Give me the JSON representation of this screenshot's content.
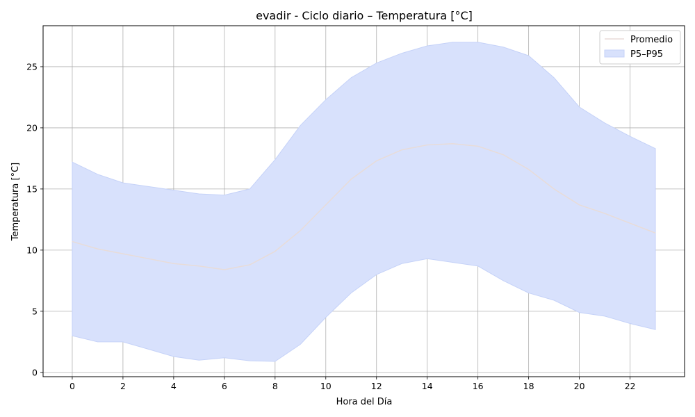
{
  "chart_data": {
    "type": "area",
    "title": "evadir - Ciclo diario – Temperatura [°C]",
    "xlabel": "Hora del Día",
    "ylabel": "Temperatura [°C]",
    "x": [
      0,
      1,
      2,
      3,
      4,
      5,
      6,
      7,
      8,
      9,
      10,
      11,
      12,
      13,
      14,
      15,
      16,
      17,
      18,
      19,
      20,
      21,
      22,
      23
    ],
    "xticks": [
      0,
      2,
      4,
      6,
      8,
      10,
      12,
      14,
      16,
      18,
      20,
      22
    ],
    "yticks": [
      0,
      5,
      10,
      15,
      20,
      25
    ],
    "xlim": [
      -1.15,
      24.15
    ],
    "ylim": [
      -0.35,
      28.35
    ],
    "grid": true,
    "legend_position": "top-right",
    "series": [
      {
        "name": "Promedio",
        "kind": "line",
        "color": "#e8dcd8",
        "values": [
          10.7,
          10.1,
          9.7,
          9.3,
          8.9,
          8.7,
          8.4,
          8.8,
          9.9,
          11.6,
          13.7,
          15.8,
          17.3,
          18.2,
          18.6,
          18.7,
          18.5,
          17.8,
          16.6,
          15.0,
          13.7,
          13.0,
          12.2,
          11.4
        ]
      },
      {
        "name": "P5–P95",
        "kind": "band",
        "color": "#d8e1fc",
        "edge_color": "#c5d2f8",
        "lower": [
          3.0,
          2.5,
          2.5,
          1.9,
          1.3,
          1.0,
          1.2,
          0.95,
          0.9,
          2.3,
          4.5,
          6.5,
          8.0,
          8.9,
          9.3,
          9.0,
          8.7,
          7.5,
          6.5,
          5.9,
          4.9,
          4.6,
          4.0,
          3.5
        ],
        "upper": [
          17.2,
          16.2,
          15.5,
          15.2,
          14.9,
          14.6,
          14.5,
          15.0,
          17.4,
          20.2,
          22.3,
          24.1,
          25.3,
          26.1,
          26.7,
          27.0,
          27.0,
          26.6,
          25.9,
          24.1,
          21.7,
          20.4,
          19.3,
          18.3
        ]
      }
    ]
  }
}
